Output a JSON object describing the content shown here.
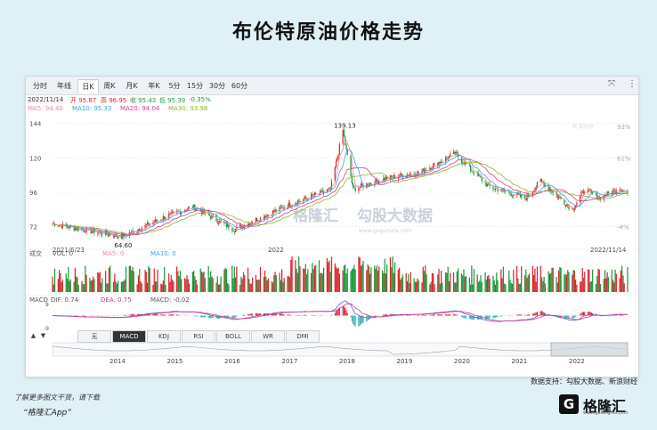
{
  "page_title": "布伦特原油价格走势",
  "tabs": [
    "分时",
    "年线",
    "日K",
    "周K",
    "月K",
    "年K",
    "5分",
    "15分",
    "30分",
    "60分"
  ],
  "active_tab": "日K",
  "icons": {
    "fullscreen": "expand-icon",
    "menu": "more-vertical-icon"
  },
  "quote": {
    "date": "2022/11/14",
    "open": "开 95.87",
    "high": "高 96.95",
    "close": "收 95.43",
    "low": "低 95.39",
    "change": "-0.35%"
  },
  "ma_legend": {
    "ma5": "MA5: 94.40",
    "ma10": "MA10: 95.33",
    "ma20": "MA20: 94.04",
    "ma30": "MA30: 93.98"
  },
  "volume_legend": {
    "label": "成交",
    "vol": "VOL: 0",
    "ma5": "MA5: 0",
    "ma10": "MA10: 0"
  },
  "macd_legend": {
    "label": "MACD",
    "dif": "DIF: 0.74",
    "dea": "DEA: 0.75",
    "macd": "MACD: -0.02"
  },
  "indicator_tabs": [
    "无",
    "MACD",
    "KDJ",
    "RSI",
    "BOLL",
    "WR",
    "DMI"
  ],
  "active_indicator": "MACD",
  "nav_arrows": [
    "▲",
    "▼"
  ],
  "watermark": "勾股大数据",
  "watermark_url": "www.gogudata.com",
  "watermark_brand": "格隆汇",
  "watermark_sina": "新浪财经",
  "source_note": "数据支持：勾股大数据、新浪财经",
  "download_note": "了解更多图文干货，请下载",
  "app_name": "“格隆汇App”",
  "logo": {
    "mark": "G",
    "name": "格隆汇",
    "sub": "www.gelonghui.com"
  },
  "colors": {
    "up": "#e0262c",
    "down": "#1a9c3c",
    "ma5": "#e58a9a",
    "ma10": "#3aa0d8",
    "ma20": "#d43a8a",
    "ma30": "#8bb82c"
  },
  "chart_data": {
    "type": "candlestick",
    "title": "",
    "ylim": [
      60,
      150
    ],
    "y_ticks": [
      72,
      96,
      120,
      144
    ],
    "percent_ticks": [
      "93%",
      "61%",
      "-4%"
    ],
    "date_labels": {
      "start": "2021/6/23",
      "mid": "2022",
      "end": "2022/11/14"
    },
    "annotations": {
      "high": "139.13",
      "low": "64.60"
    },
    "price_path": [
      [
        "2021/6/23",
        74
      ],
      [
        "2021/7/20",
        70
      ],
      [
        "2021/8/23",
        65
      ],
      [
        "2021/10/01",
        79
      ],
      [
        "2021/10/25",
        86
      ],
      [
        "2021/12/01",
        70
      ],
      [
        "2022/01/20",
        88
      ],
      [
        "2022/02/24",
        98
      ],
      [
        "2022/03/07",
        139.13
      ],
      [
        "2022/03/16",
        98
      ],
      [
        "2022/04/10",
        105
      ],
      [
        "2022/05/15",
        110
      ],
      [
        "2022/06/14",
        123
      ],
      [
        "2022/07/14",
        100
      ],
      [
        "2022/08/16",
        92
      ],
      [
        "2022/08/29",
        104
      ],
      [
        "2022/09/26",
        84
      ],
      [
        "2022/10/07",
        98
      ],
      [
        "2022/10/20",
        92
      ],
      [
        "2022/11/07",
        99
      ],
      [
        "2022/11/14",
        95.43
      ]
    ],
    "macd_ylim": [
      -9,
      9
    ],
    "macd_ticks": [
      9,
      -9
    ],
    "navigator_years": [
      "2014",
      "2015",
      "2016",
      "2017",
      "2018",
      "2019",
      "2020",
      "2021",
      "2022"
    ]
  }
}
